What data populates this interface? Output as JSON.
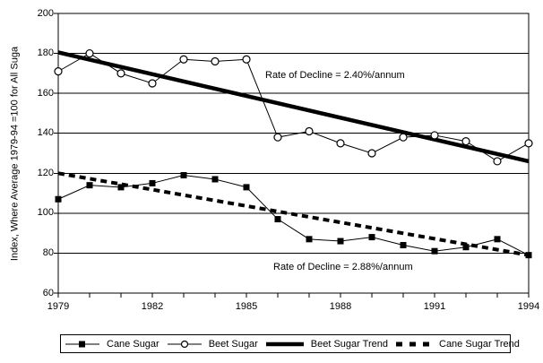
{
  "colors": {
    "foreground": "#000000",
    "background": "#ffffff"
  },
  "chart_data": {
    "type": "line",
    "title": "",
    "xlabel": "",
    "ylabel": "Index, Where Average 1979-94 =100 for All Suga",
    "xlim": [
      1979,
      1994
    ],
    "ylim": [
      60,
      200
    ],
    "grid": "horizontal",
    "legend_position": "bottom",
    "x": [
      1979,
      1980,
      1981,
      1982,
      1983,
      1984,
      1985,
      1986,
      1987,
      1988,
      1989,
      1990,
      1991,
      1992,
      1993,
      1994
    ],
    "x_tick_labels": [
      "1979",
      "1982",
      "1985",
      "1988",
      "1991",
      "1994"
    ],
    "y_ticks": [
      60,
      80,
      100,
      120,
      140,
      160,
      180,
      200
    ],
    "y_gridlines": [
      80,
      100,
      120,
      140,
      160,
      180
    ],
    "series": [
      {
        "name": "Cane Sugar",
        "marker": "filled-square",
        "line": "thin-solid",
        "values": [
          107,
          114,
          113,
          115,
          119,
          117,
          113,
          97,
          87,
          86,
          88,
          84,
          81,
          83,
          87,
          79
        ]
      },
      {
        "name": "Beet Sugar",
        "marker": "open-circle",
        "line": "thin-solid",
        "values": [
          171,
          180,
          170,
          165,
          177,
          176,
          177,
          138,
          141,
          135,
          130,
          138,
          139,
          136,
          126,
          135
        ]
      },
      {
        "name": "Beet Sugar Trend",
        "marker": "none",
        "line": "thick-solid",
        "trend": {
          "x_start": 1979,
          "value_start": 180.5,
          "x_end": 1994,
          "value_end": 126
        }
      },
      {
        "name": "Cane Sugar Trend",
        "marker": "none",
        "line": "thick-dashed",
        "trend": {
          "x_start": 1979,
          "value_start": 120,
          "x_end": 1994,
          "value_end": 79
        }
      }
    ],
    "annotations": [
      {
        "text": "Rate of Decline = 2.40%/annum"
      },
      {
        "text": "Rate of Decline = 2.88%/annum"
      }
    ]
  },
  "legend": {
    "items": [
      {
        "label": "Cane Sugar",
        "icon": "filled-square-line-sample"
      },
      {
        "label": "Beet Sugar",
        "icon": "open-circle-line-sample"
      },
      {
        "label": "Beet Sugar Trend",
        "icon": "thick-solid-line-sample"
      },
      {
        "label": "Cane Sugar Trend",
        "icon": "thick-dashed-line-sample"
      }
    ]
  }
}
